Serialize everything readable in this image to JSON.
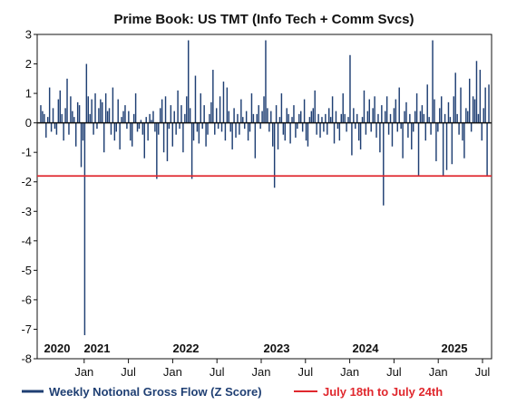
{
  "colors": {
    "series": "#1f3f73",
    "threshold": "#e0282e",
    "axis": "#111111"
  },
  "chart_data": {
    "type": "bar",
    "title": "Prime Book: US TMT (Info Tech + Comm Svcs)",
    "xlabel": "",
    "ylabel": "",
    "ylim": [
      -8,
      3
    ],
    "yticks": [
      "3",
      "2",
      "1",
      "0",
      "-1",
      "-2",
      "-3",
      "-4",
      "-5",
      "-6",
      "-7",
      "-8"
    ],
    "x_range": [
      "2020-07",
      "2025-07"
    ],
    "month_ticks": [
      "Jan",
      "Jul",
      "Jan",
      "Jul",
      "Jan",
      "Jul",
      "Jan",
      "Jul",
      "Jan",
      "Jul"
    ],
    "year_labels": [
      "2020",
      "2021",
      "2022",
      "2023",
      "2024",
      "2025"
    ],
    "grid": false,
    "legend": "bottom",
    "series": [
      {
        "name": "Weekly Notional Gross Flow (Z Score)",
        "values": [
          0.6,
          0.4,
          0.3,
          -0.5,
          0.2,
          1.2,
          -0.3,
          0.5,
          -0.2,
          -0.4,
          0.8,
          1.1,
          0.3,
          -0.6,
          0.5,
          1.5,
          -0.4,
          0.9,
          0.4,
          0.2,
          -0.8,
          0.7,
          0.6,
          -1.5,
          -0.6,
          -7.2,
          2.0,
          0.9,
          0.3,
          0.8,
          -0.4,
          1.0,
          -0.2,
          0.5,
          0.8,
          0.7,
          -1.0,
          1.0,
          0.4,
          0.5,
          -0.4,
          1.2,
          -0.6,
          -0.3,
          0.8,
          -0.9,
          0.2,
          0.4,
          0.6,
          -0.2,
          0.4,
          -0.6,
          -0.8,
          0.3,
          1.0,
          -0.3,
          -0.2,
          0.1,
          -0.4,
          -1.2,
          0.2,
          -0.6,
          0.3,
          0.1,
          0.4,
          -0.3,
          -1.9,
          -0.4,
          0.5,
          0.8,
          -1.0,
          0.9,
          -1.3,
          -0.2,
          0.6,
          -0.8,
          0.4,
          -0.4,
          1.1,
          -0.2,
          0.6,
          -1.0,
          0.3,
          0.9,
          2.8,
          0.5,
          -1.9,
          -0.6,
          1.6,
          -0.3,
          -0.7,
          1.0,
          -0.2,
          0.6,
          -0.8,
          -0.4,
          0.3,
          0.7,
          1.8,
          -0.4,
          0.5,
          -0.2,
          0.9,
          -0.3,
          1.4,
          -0.6,
          1.2,
          0.4,
          -0.3,
          -0.9,
          0.5,
          -0.5,
          0.3,
          -0.4,
          0.8,
          0.2,
          -0.2,
          0.4,
          -0.6,
          -0.3,
          1.0,
          0.3,
          -1.2,
          0.3,
          0.6,
          -0.2,
          0.4,
          0.9,
          2.8,
          0.5,
          -0.3,
          0.4,
          -0.8,
          -2.2,
          0.6,
          -0.9,
          0.2,
          1.0,
          -0.4,
          -0.6,
          0.5,
          0.3,
          -0.7,
          0.2,
          0.6,
          -0.5,
          -0.2,
          0.3,
          0.4,
          -0.3,
          0.8,
          -0.6,
          -0.8,
          0.2,
          0.4,
          0.5,
          1.1,
          -0.4,
          0.3,
          -0.5,
          0.2,
          -0.3,
          0.3,
          -0.4,
          0.5,
          0.2,
          0.9,
          -0.7,
          0.4,
          -0.2,
          -0.6,
          0.3,
          1.0,
          0.3,
          -0.3,
          0.2,
          2.3,
          -1.1,
          0.5,
          -0.2,
          0.3,
          -0.6,
          -0.9,
          0.2,
          1.1,
          -0.4,
          0.4,
          0.8,
          -0.3,
          0.5,
          0.9,
          -0.5,
          0.3,
          -1.0,
          0.6,
          -2.8,
          0.4,
          0.9,
          -0.4,
          0.3,
          -0.8,
          0.5,
          0.8,
          -0.3,
          1.2,
          -0.2,
          -1.2,
          0.4,
          0.7,
          -0.5,
          0.3,
          -0.9,
          -0.3,
          0.4,
          1.0,
          -1.8,
          0.4,
          0.6,
          0.3,
          -0.6,
          1.3,
          0.2,
          -0.4,
          2.8,
          0.8,
          -1.3,
          -0.3,
          0.5,
          0.9,
          -1.8,
          0.3,
          -1.6,
          0.7,
          0.2,
          -1.4,
          0.9,
          1.7,
          0.3,
          -0.4,
          1.2,
          -0.6,
          -1.2,
          0.5,
          0.4,
          1.5,
          -0.3,
          0.9,
          0.8,
          2.1,
          0.3,
          1.8,
          -0.6,
          0.5,
          1.2,
          -1.8,
          1.3
        ]
      }
    ],
    "reference_lines": [
      {
        "name": "July 18th to July 24th",
        "y": -1.8
      }
    ]
  }
}
